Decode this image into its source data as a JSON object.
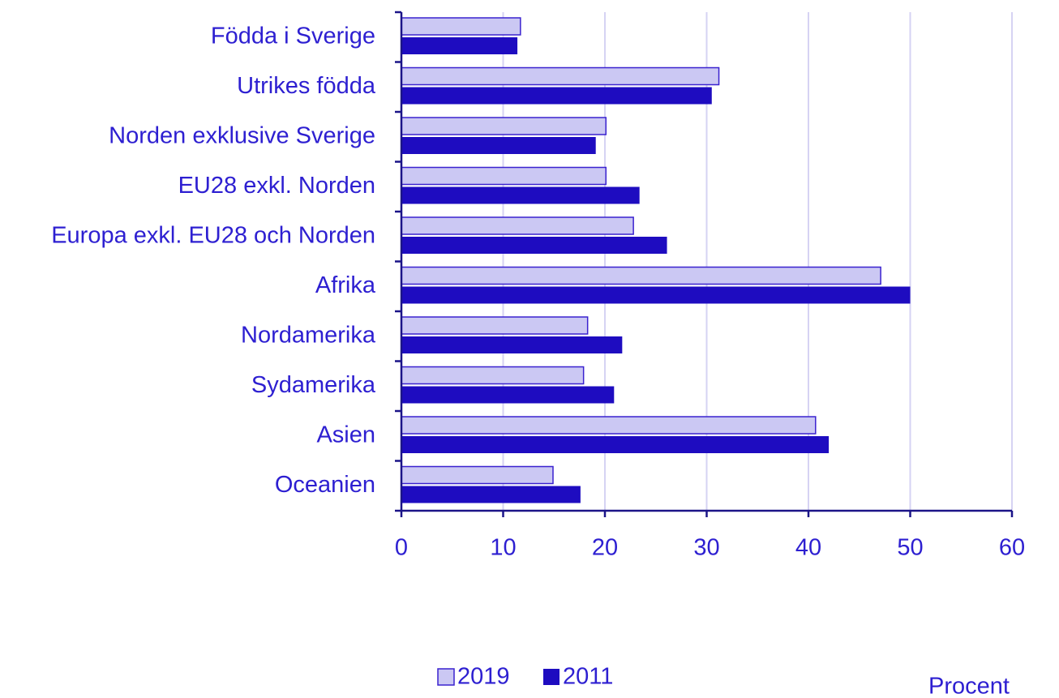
{
  "chart_data": {
    "type": "hbar",
    "categories": [
      "Födda i Sverige",
      "Utrikes födda",
      "Norden exklusive Sverige",
      "EU28 exkl. Norden",
      "Europa exkl. EU28 och Norden",
      "Afrika",
      "Nordamerika",
      "Sydamerika",
      "Asien",
      "Oceanien"
    ],
    "series": [
      {
        "name": "2019",
        "color": "#cbc8f3",
        "values": [
          11.7,
          31.2,
          20.1,
          20.1,
          22.8,
          47.1,
          18.3,
          17.9,
          40.7,
          14.9
        ]
      },
      {
        "name": "2011",
        "color": "#1e0cc0",
        "values": [
          11.4,
          30.5,
          19.1,
          23.4,
          26.1,
          50.0,
          21.7,
          20.9,
          42.0,
          17.6
        ]
      }
    ],
    "xlim": [
      0,
      60
    ],
    "xticks": [
      0,
      10,
      20,
      30,
      40,
      50,
      60
    ],
    "xlabel": "Procent",
    "grid": true,
    "legend": "bottom"
  }
}
